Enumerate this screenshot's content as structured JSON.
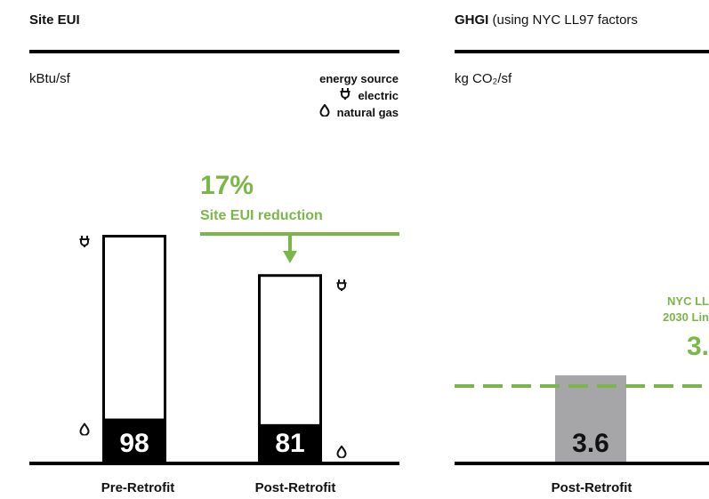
{
  "colors": {
    "accent": "#7ab648",
    "gas_fill": "#000000",
    "grey_bar": "#a6a6a8",
    "text": "#111111"
  },
  "left_panel": {
    "title": "Site EUI",
    "unit": "kBtu/sf",
    "legend": {
      "title": "energy source",
      "items": [
        {
          "icon": "plug-icon",
          "label": "electric"
        },
        {
          "icon": "flame-icon",
          "label": "natural gas"
        }
      ]
    },
    "annotation": {
      "value": "17%",
      "label": "Site EUI reduction"
    }
  },
  "right_panel": {
    "title_bold": "GHGI",
    "title_rest": " (using NYC LL97 factors",
    "unit": "kg CO₂/sf",
    "limit_label_line1": "NYC LL",
    "limit_label_line2": "2030 Lin",
    "limit_value": "3.",
    "bar_label": "3.6"
  },
  "chart_data": [
    {
      "type": "bar",
      "title": "Site EUI",
      "ylabel": "kBtu/sf",
      "categories": [
        "Pre-Retrofit",
        "Post-Retrofit"
      ],
      "values": [
        98,
        81
      ],
      "value_labels": [
        "98",
        "81"
      ],
      "ylim": [
        0,
        115
      ],
      "stacked_components": {
        "natural_gas_share": [
          0.19,
          0.2
        ],
        "electric_share": [
          0.81,
          0.8
        ]
      },
      "annotation": "17% Site EUI reduction",
      "legend": {
        "title": "energy source",
        "items": [
          "electric",
          "natural gas"
        ],
        "placement": "top-right"
      }
    },
    {
      "type": "bar",
      "title": "GHGI (using NYC LL97 factors",
      "ylabel": "kg CO₂/sf",
      "categories": [
        "Post-Retrofit"
      ],
      "values": [
        3.6
      ],
      "value_labels": [
        "3.6"
      ],
      "ylim": [
        0,
        11.5
      ],
      "reference_line": {
        "label": "NYC LL 2030 Lin",
        "value": 3.6,
        "printed_value": "3.",
        "style": "dashed"
      }
    }
  ]
}
